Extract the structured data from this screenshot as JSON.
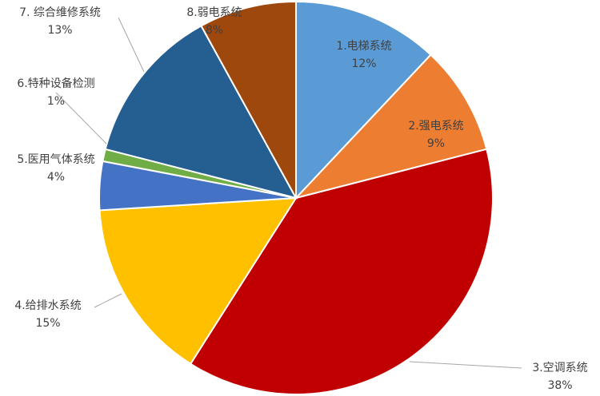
{
  "chart_data": {
    "type": "pie",
    "categories": [
      "1.电梯系统",
      "2.强电系统",
      "3.空调系统",
      "4.给排水系统",
      "5.医用气体系统",
      "6.特种设备检测",
      "7. 综合维修系统",
      "8.弱电系统"
    ],
    "values": [
      12,
      9,
      38,
      15,
      4,
      1,
      13,
      8
    ],
    "value_labels": [
      "12%",
      "9%",
      "38%",
      "15%",
      "4%",
      "1%",
      "13%",
      "8%"
    ],
    "colors": [
      "#5b9bd5",
      "#ed7d31",
      "#c00000",
      "#ffc000",
      "#4472c4",
      "#70ad47",
      "#255e91",
      "#9e480e"
    ]
  }
}
